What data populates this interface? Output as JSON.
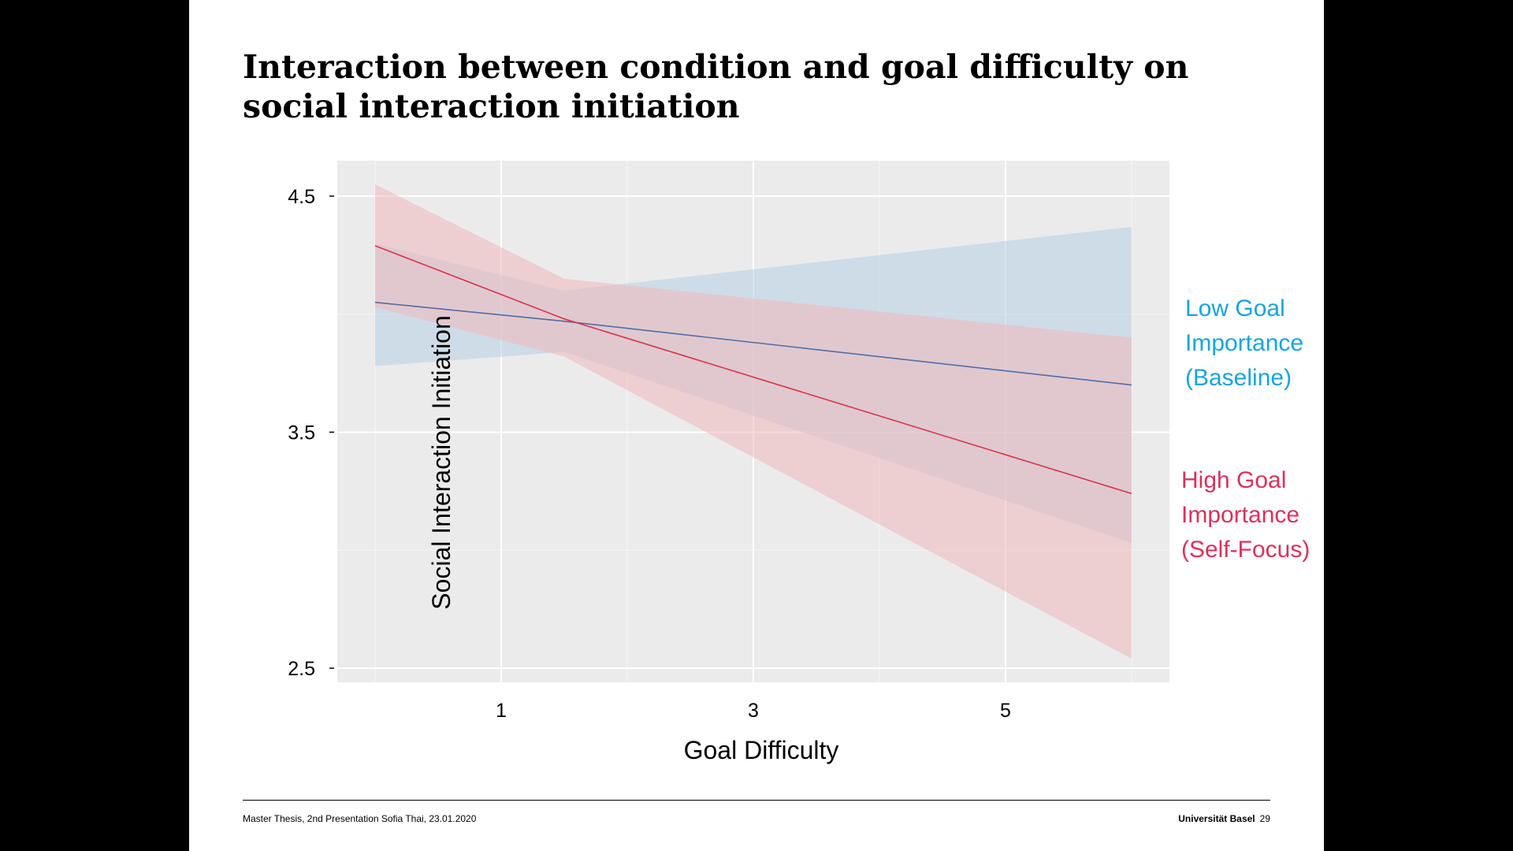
{
  "slide": {
    "title": "Interaction between condition and goal difficulty on social interaction initiation",
    "footer_left": "Master Thesis, 2nd Presentation Sofia Thai, 23.01.2020",
    "footer_university": "Universität Basel",
    "footer_page": "29"
  },
  "chart_data": {
    "type": "line",
    "title": "",
    "xlabel": "Goal Difficulty",
    "ylabel": "Social Interaction Initiation",
    "x_ticks": [
      1,
      3,
      5
    ],
    "y_ticks": [
      2.5,
      3.5,
      4.5
    ],
    "xlim": [
      -0.3,
      6.3
    ],
    "ylim": [
      2.44,
      4.65
    ],
    "grid": true,
    "background": "#ebebeb",
    "series": [
      {
        "name": "Low Goal Importance (Baseline)",
        "color": "#4d6fa8",
        "band_color": "#b7cfe4",
        "label_color": "#1aa3dc",
        "x": [
          0,
          1.5,
          6
        ],
        "y": [
          4.05,
          3.97,
          3.7
        ],
        "lower": [
          3.78,
          3.84,
          3.03
        ],
        "upper": [
          4.3,
          4.1,
          4.37
        ]
      },
      {
        "name": "High Goal Importance (Self-Focus)",
        "color": "#d9344a",
        "band_color": "#f1b8bc",
        "label_color": "#d9325c",
        "x": [
          0,
          1.5,
          6
        ],
        "y": [
          4.29,
          3.98,
          3.24
        ],
        "lower": [
          4.03,
          3.82,
          2.54
        ],
        "upper": [
          4.55,
          4.15,
          3.9
        ]
      }
    ]
  }
}
